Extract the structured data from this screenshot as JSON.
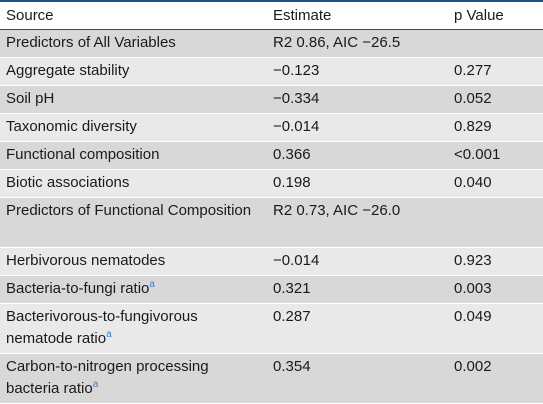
{
  "table": {
    "headers": [
      "Source",
      "Estimate",
      "p Value"
    ],
    "footnote_marker": "a",
    "rows": [
      {
        "source": "Predictors of All Variables",
        "estimate": "R2 0.86, AIC −26.5",
        "p": "",
        "footnote": false,
        "lines": 1
      },
      {
        "source": "Aggregate stability",
        "estimate": "−0.123",
        "p": "0.277",
        "footnote": false,
        "lines": 1
      },
      {
        "source": "Soil pH",
        "estimate": "−0.334",
        "p": "0.052",
        "footnote": false,
        "lines": 1
      },
      {
        "source": "Taxonomic diversity",
        "estimate": "−0.014",
        "p": "0.829",
        "footnote": false,
        "lines": 1
      },
      {
        "source": "Functional composition",
        "estimate": "0.366",
        "p": "<0.001",
        "footnote": false,
        "lines": 1
      },
      {
        "source": "Biotic associations",
        "estimate": "0.198",
        "p": "0.040",
        "footnote": false,
        "lines": 1
      },
      {
        "source": "Predictors of Functional Composition",
        "estimate": "R2 0.73, AIC −26.0",
        "p": "",
        "footnote": false,
        "lines": 2
      },
      {
        "source": "Herbivorous nematodes",
        "estimate": "−0.014",
        "p": "0.923",
        "footnote": false,
        "lines": 1
      },
      {
        "source": "Bacteria-to-fungi ratio",
        "estimate": "0.321",
        "p": "0.003",
        "footnote": true,
        "lines": 1
      },
      {
        "source": "Bacterivorous-to-fungivorous nematode ratio",
        "estimate": "0.287",
        "p": "0.049",
        "footnote": true,
        "lines": 2
      },
      {
        "source": "Carbon-to-nitrogen processing bacteria ratio",
        "estimate": "0.354",
        "p": "0.002",
        "footnote": true,
        "lines": 2
      }
    ]
  },
  "colors": {
    "rule": "#1f4e8c",
    "row_dark": "#d8d8d8",
    "row_light": "#e9e9e9",
    "footnote": "#3b7fc4"
  }
}
